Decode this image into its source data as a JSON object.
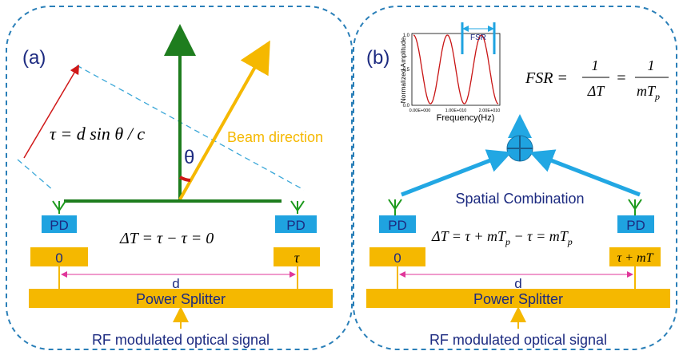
{
  "panel_a": {
    "label": "(a)",
    "tau_formula": "τ = d sin θ / c",
    "theta": "θ",
    "beam_direction": "Beam direction",
    "delta_formula": "ΔT = τ − τ = 0",
    "pd_left": "PD",
    "pd_right": "PD",
    "delay_left": "0",
    "delay_right": "τ",
    "spacing": "d",
    "splitter": "Power Splitter",
    "input": "RF modulated optical signal"
  },
  "panel_b": {
    "label": "(b)",
    "fsr_formula_lhs": "FSR =",
    "fsr_num1": "1",
    "fsr_den1": "ΔT",
    "fsr_eq": "=",
    "fsr_num2": "1",
    "fsr_den2": "mT",
    "fsr_den2_sub": "p",
    "combination": "Spatial Combination",
    "delta_formula": "ΔT = τ + mT",
    "delta_formula_sub": "p",
    "delta_formula_mid": " − τ = mT",
    "delta_formula_sub2": "p",
    "pd_left": "PD",
    "pd_right": "PD",
    "delay_left": "0",
    "delay_right": "τ + mT",
    "spacing": "d",
    "splitter": "Power Splitter",
    "input": "RF modulated optical signal",
    "plot": {
      "ylabel": "Normalized Amplitude",
      "xlabel": "Frequency(Hz)",
      "fsr_label": "FSR",
      "yticks": [
        "1.0",
        "0.5",
        "0.0"
      ],
      "xticks": [
        "0.00E+000",
        "1.00E+010",
        "2.00E+010"
      ]
    }
  },
  "colors": {
    "dashed_border": "#2a7fb8",
    "green": "#1e7d1e",
    "yellow": "#f5b800",
    "blue_box": "#1fa3e0",
    "orange_box": "#f5b800",
    "arrow_blue": "#22a7e3",
    "pink": "#e0369a",
    "navy_text": "#1c2a80",
    "red": "#d01818"
  }
}
